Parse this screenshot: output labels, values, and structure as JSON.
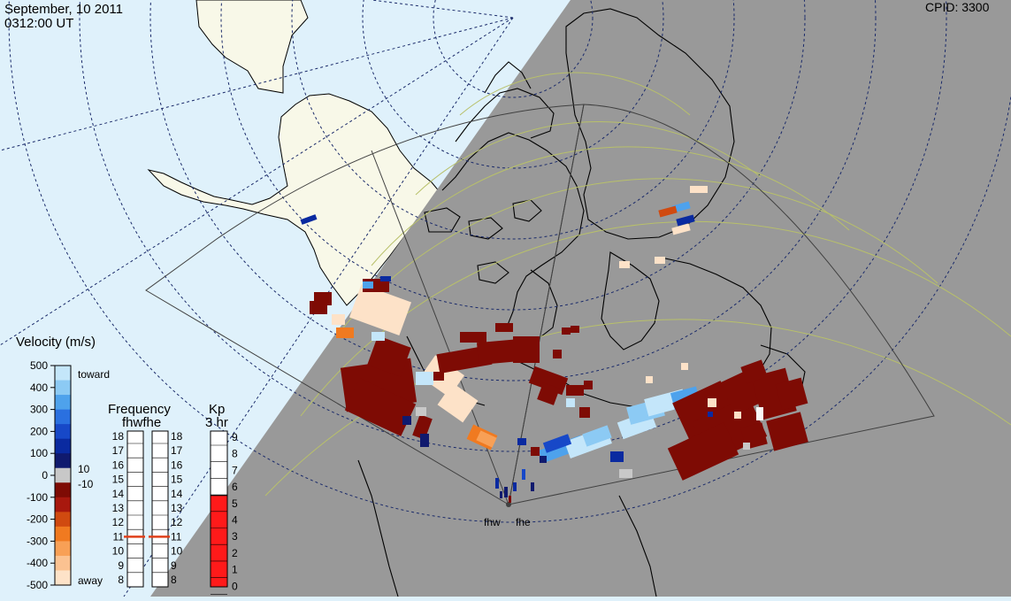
{
  "header": {
    "date": "September, 10 2011",
    "time": "0312:00 UT",
    "cpid": "CPID:  3300"
  },
  "radars": [
    "fhw",
    "fhe"
  ],
  "velocity_scale": {
    "title": "Velocity (m/s)",
    "ticks": [
      "500",
      "400",
      "300",
      "200",
      "100",
      "0",
      "-100",
      "-200",
      "-300",
      "-400",
      "-500"
    ],
    "toward_label": "toward",
    "away_label": "away",
    "threshold_labels": [
      "10",
      "-10"
    ],
    "colors": [
      "#fde2c8",
      "#fbc291",
      "#f8a056",
      "#f07a20",
      "#d04a10",
      "#a8180e",
      "#7e0b04",
      "#c8c8c8",
      "#101a6e",
      "#0a2aa0",
      "#1748c8",
      "#2a70e0",
      "#4ea2ec",
      "#8ccaf4",
      "#c4e6fa"
    ]
  },
  "frequency": {
    "title": "Frequency",
    "subtitle": "fhwfhe",
    "ticks": [
      "18",
      "17",
      "16",
      "15",
      "14",
      "13",
      "12",
      "11",
      "10",
      "9",
      "8"
    ],
    "fhw_value": 11,
    "fhe_value": 11,
    "marker_color": "#e0401a"
  },
  "kp": {
    "title": "Kp",
    "subtitle": "3 hr",
    "ticks": [
      "9",
      "8",
      "7",
      "6",
      "5",
      "4",
      "3",
      "2",
      "1",
      "0"
    ],
    "value": 5,
    "fill_color": "#ff1a1a"
  },
  "colors": {
    "ocean_day": "#dff1fb",
    "land_day": "#f8f8e8",
    "night": "#999999",
    "grid_day": "#1a2a6a",
    "grid_night": "#b8c06a",
    "fov": "#404040"
  }
}
